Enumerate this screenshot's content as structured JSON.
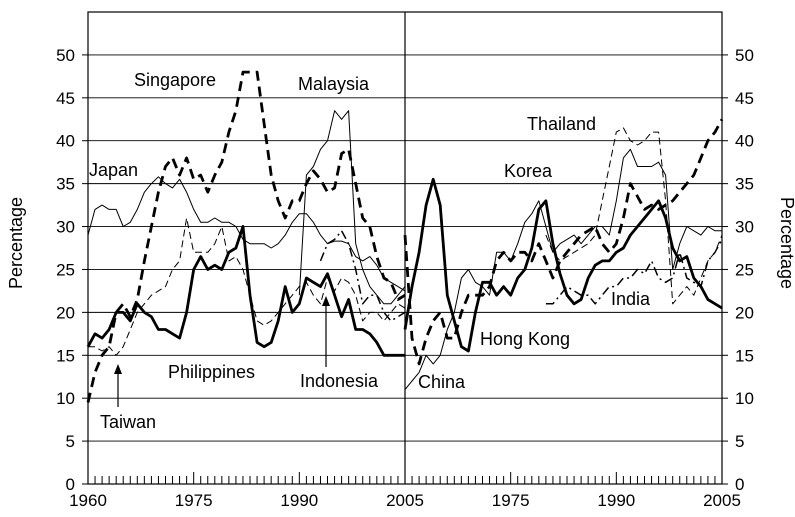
{
  "chart_data": {
    "type": "line",
    "ylabel_left": "Percentage",
    "ylabel_right": "Percentage",
    "ylim": [
      0,
      55
    ],
    "yticks": [
      0,
      5,
      10,
      15,
      20,
      25,
      30,
      35,
      40,
      45,
      50
    ],
    "xlim": [
      1960,
      2005
    ],
    "xticks": [
      1960,
      1975,
      1990,
      2005
    ],
    "grid": "horizontal",
    "legend": "inline labels",
    "panels": [
      {
        "id": "left",
        "series": [
          {
            "name": "Japan",
            "style": "thin",
            "x": [
              1960,
              1961,
              1962,
              1963,
              1964,
              1965,
              1966,
              1967,
              1968,
              1969,
              1970,
              1971,
              1972,
              1973,
              1974,
              1975,
              1976,
              1977,
              1978,
              1979,
              1980,
              1981,
              1982,
              1983,
              1984,
              1985,
              1986,
              1987,
              1988,
              1989,
              1990,
              1991,
              1992,
              1993,
              1994,
              1995,
              1996,
              1997,
              1998,
              1999,
              2000,
              2001,
              2002,
              2003,
              2004,
              2005
            ],
            "y": [
              29,
              32,
              32.5,
              32,
              32,
              30,
              30.5,
              32,
              34,
              35,
              35.8,
              35,
              34.5,
              35.5,
              34,
              32,
              30.5,
              30.5,
              31,
              30.5,
              30.5,
              30,
              28.5,
              28,
              28,
              28,
              27.5,
              28,
              29,
              30.5,
              31.5,
              31.5,
              30.5,
              29,
              28,
              28.3,
              28.3,
              28,
              26.5,
              26,
              26.5,
              25.5,
              24,
              23.5,
              23,
              22.5
            ]
          },
          {
            "name": "Singapore",
            "style": "dashed-bold",
            "x": [
              1960,
              1961,
              1962,
              1963,
              1964,
              1965,
              1966,
              1967,
              1968,
              1969,
              1970,
              1971,
              1972,
              1973,
              1974,
              1975,
              1976,
              1977,
              1978,
              1979,
              1980,
              1981,
              1982,
              1983,
              1984,
              1985,
              1986,
              1987,
              1988,
              1989,
              1990,
              1991,
              1992,
              1993,
              1994,
              1995,
              1996,
              1997,
              1998,
              1999,
              2000,
              2001,
              2002,
              2003,
              2004,
              2005
            ],
            "y": [
              9.5,
              13,
              15,
              16,
              20,
              21,
              19.5,
              21.5,
              26,
              30,
              34,
              37,
              38,
              36,
              38,
              35.5,
              36,
              34,
              36,
              37.5,
              41,
              43.5,
              48,
              48,
              48,
              42,
              36,
              33,
              31,
              33,
              33,
              35,
              36.5,
              35.5,
              34,
              34.5,
              38.5,
              39,
              35,
              31,
              30,
              26.5,
              24,
              23.5,
              21.5,
              22
            ]
          },
          {
            "name": "Malaysia",
            "style": "thin",
            "x": [
              1990,
              1991,
              1992,
              1993,
              1994,
              1995,
              1996,
              1997,
              1998,
              1999,
              2000,
              2001,
              2002,
              2003,
              2004,
              2005
            ],
            "y": [
              22,
              36,
              37,
              39,
              40,
              43.5,
              42.5,
              43.5,
              28,
              25,
              23,
              22,
              21,
              21,
              22,
              23
            ]
          },
          {
            "name": "Philippines",
            "style": "dashed-thin",
            "x": [
              1960,
              1961,
              1962,
              1963,
              1964,
              1965,
              1966,
              1967,
              1968,
              1969,
              1970,
              1971,
              1972,
              1973,
              1974,
              1975,
              1976,
              1977,
              1978,
              1979,
              1980,
              1981,
              1982,
              1983,
              1984,
              1985,
              1986,
              1987,
              1988,
              1989,
              1990,
              1991,
              1992,
              1993,
              1994,
              1995,
              1996,
              1997,
              1998,
              1999,
              2000,
              2001,
              2002,
              2003,
              2004,
              2005
            ],
            "y": [
              16,
              16,
              15.5,
              16,
              15,
              16,
              18,
              20,
              21,
              22,
              22.5,
              23,
              25,
              26,
              31,
              27,
              27,
              27,
              28,
              30,
              26,
              26.5,
              25,
              22,
              19,
              18.5,
              19,
              20,
              21,
              22,
              23,
              23.5,
              22,
              21,
              24,
              22.5,
              24,
              23.5,
              22,
              19,
              20,
              20,
              19,
              20,
              21,
              20.5
            ]
          },
          {
            "name": "Indonesia",
            "style": "dashdot",
            "x": [
              1993,
              1994,
              1995,
              1996,
              1997,
              1998,
              1999,
              2000,
              2001,
              2002,
              2003,
              2004,
              2005
            ],
            "y": [
              26,
              28,
              28.5,
              29.5,
              28,
              25,
              21,
              22,
              22,
              20,
              19,
              19.5,
              20
            ]
          },
          {
            "name": "Taiwan",
            "style": "bold",
            "x": [
              1960,
              1961,
              1962,
              1963,
              1964,
              1965,
              1966,
              1967,
              1968,
              1969,
              1970,
              1971,
              1972,
              1973,
              1974,
              1975,
              1976,
              1977,
              1978,
              1979,
              1980,
              1981,
              1982,
              1983,
              1984,
              1985,
              1986,
              1987,
              1988,
              1989,
              1990,
              1991,
              1992,
              1993,
              1994,
              1995,
              1996,
              1997,
              1998,
              1999,
              2000,
              2001,
              2002,
              2003,
              2004,
              2005
            ],
            "y": [
              16,
              17.5,
              17,
              18,
              20,
              20,
              19,
              21,
              20,
              19.5,
              18,
              18,
              17.5,
              17,
              20,
              25,
              26.5,
              25,
              25.5,
              25,
              27,
              27.5,
              30,
              22,
              16.5,
              16,
              16.5,
              19,
              23,
              20,
              21,
              24,
              23.5,
              23,
              24.5,
              22,
              19.5,
              21.5,
              18,
              18,
              17.5,
              16.5,
              15,
              15,
              15,
              15
            ]
          }
        ],
        "annotations": [
          {
            "text": "Singapore",
            "anchor_series": "Singapore"
          },
          {
            "text": "Malaysia",
            "anchor_series": "Malaysia"
          },
          {
            "text": "Japan",
            "anchor_series": "Japan"
          },
          {
            "text": "Philippines",
            "anchor_series": "Philippines"
          },
          {
            "text": "Indonesia",
            "anchor_series": "Indonesia",
            "arrow": true
          },
          {
            "text": "Taiwan",
            "anchor_series": "Taiwan",
            "arrow": true
          }
        ]
      },
      {
        "id": "right",
        "series": [
          {
            "name": "China",
            "style": "dashed-bold",
            "x": [
              1960,
              1961,
              1962,
              1963,
              1964,
              1965,
              1966,
              1967,
              1968,
              1969,
              1970,
              1971,
              1972,
              1973,
              1974,
              1975,
              1976,
              1977,
              1978,
              1979,
              1980,
              1981,
              1982,
              1983,
              1984,
              1985,
              1986,
              1987,
              1988,
              1989,
              1990,
              1991,
              1992,
              1993,
              1994,
              1995,
              1996,
              1997,
              1998,
              1999,
              2000,
              2001,
              2002,
              2003,
              2004,
              2005
            ],
            "y": [
              29,
              17,
              14,
              17,
              19,
              20,
              17,
              17,
              20,
              22,
              22,
              22,
              23,
              26,
              27,
              26,
              27,
              27,
              26,
              28,
              26,
              24,
              26,
              27,
              28,
              29,
              29.5,
              30,
              28,
              27,
              28,
              31,
              35,
              33.5,
              32,
              32.5,
              32,
              32.5,
              33,
              34,
              35,
              36,
              38,
              40,
              41,
              42.5
            ]
          },
          {
            "name": "Hong Kong",
            "style": "bold",
            "x": [
              1960,
              1961,
              1962,
              1963,
              1964,
              1965,
              1966,
              1967,
              1968,
              1969,
              1970,
              1971,
              1972,
              1973,
              1974,
              1975,
              1976,
              1977,
              1978,
              1979,
              1980,
              1981,
              1982,
              1983,
              1984,
              1985,
              1986,
              1987,
              1988,
              1989,
              1990,
              1991,
              1992,
              1993,
              1994,
              1995,
              1996,
              1997,
              1998,
              1999,
              2000,
              2001,
              2002,
              2003,
              2004,
              2005
            ],
            "y": [
              18,
              23,
              27,
              32.5,
              35.5,
              32.5,
              22,
              19,
              16,
              15.5,
              20,
              23.5,
              23.5,
              22,
              23,
              22,
              24,
              25,
              27.5,
              32,
              33,
              28,
              24.5,
              22,
              21,
              21.5,
              24,
              25.5,
              26,
              26,
              27,
              27.5,
              29,
              30,
              31,
              32,
              33,
              31,
              27.5,
              26,
              26.5,
              24,
              23,
              21.5,
              21,
              20.5
            ]
          },
          {
            "name": "Korea",
            "style": "thin",
            "x": [
              1960,
              1961,
              1962,
              1963,
              1964,
              1965,
              1966,
              1967,
              1968,
              1969,
              1970,
              1971,
              1972,
              1973,
              1974,
              1975,
              1976,
              1977,
              1978,
              1979,
              1980,
              1981,
              1982,
              1983,
              1984,
              1985,
              1986,
              1987,
              1988,
              1989,
              1990,
              1991,
              1992,
              1993,
              1994,
              1995,
              1996,
              1997,
              1998,
              1999,
              2000,
              2001,
              2002,
              2003,
              2004,
              2005
            ],
            "y": [
              11,
              12,
              13,
              15,
              14,
              15,
              18,
              20,
              24,
              25,
              23.5,
              23,
              22,
              27,
              27,
              26,
              28,
              30.5,
              31.5,
              33,
              30,
              27,
              28,
              28.5,
              29,
              28,
              29,
              30,
              30,
              29,
              33,
              38,
              39,
              37,
              37,
              37,
              37.5,
              36,
              25,
              28,
              30,
              29.5,
              29,
              30,
              29.5,
              29.5
            ]
          },
          {
            "name": "Thailand",
            "style": "dashed-thin",
            "x": [
              1980,
              1981,
              1982,
              1983,
              1984,
              1985,
              1986,
              1987,
              1988,
              1989,
              1990,
              1991,
              1992,
              1993,
              1994,
              1995,
              1996,
              1997,
              1998,
              1999,
              2000,
              2001,
              2002,
              2003,
              2004,
              2005
            ],
            "y": [
              29,
              27,
              26,
              26.5,
              27,
              27.5,
              28,
              29,
              33,
              37,
              41,
              41.5,
              40,
              39.5,
              40,
              41,
              41,
              33,
              21,
              22,
              23,
              22,
              24,
              26,
              27,
              29
            ]
          },
          {
            "name": "India",
            "style": "dashdot",
            "x": [
              1980,
              1981,
              1982,
              1983,
              1984,
              1985,
              1986,
              1987,
              1988,
              1989,
              1990,
              1991,
              1992,
              1993,
              1994,
              1995,
              1996,
              1997,
              1998,
              1999,
              2000,
              2001,
              2002,
              2003,
              2004,
              2005
            ],
            "y": [
              21,
              21,
              22,
              23,
              22.5,
              22,
              22,
              21,
              22,
              23,
              23,
              24,
              24,
              25,
              24.5,
              26,
              24,
              23.5,
              24,
              27,
              24,
              23.5,
              23,
              26,
              27,
              28.5
            ]
          }
        ],
        "annotations": [
          {
            "text": "Thailand",
            "anchor_series": "Thailand"
          },
          {
            "text": "Korea",
            "anchor_series": "Korea"
          },
          {
            "text": "Hong Kong",
            "anchor_series": "Hong Kong"
          },
          {
            "text": "India",
            "anchor_series": "India"
          },
          {
            "text": "China",
            "anchor_series": "China"
          }
        ]
      }
    ]
  }
}
